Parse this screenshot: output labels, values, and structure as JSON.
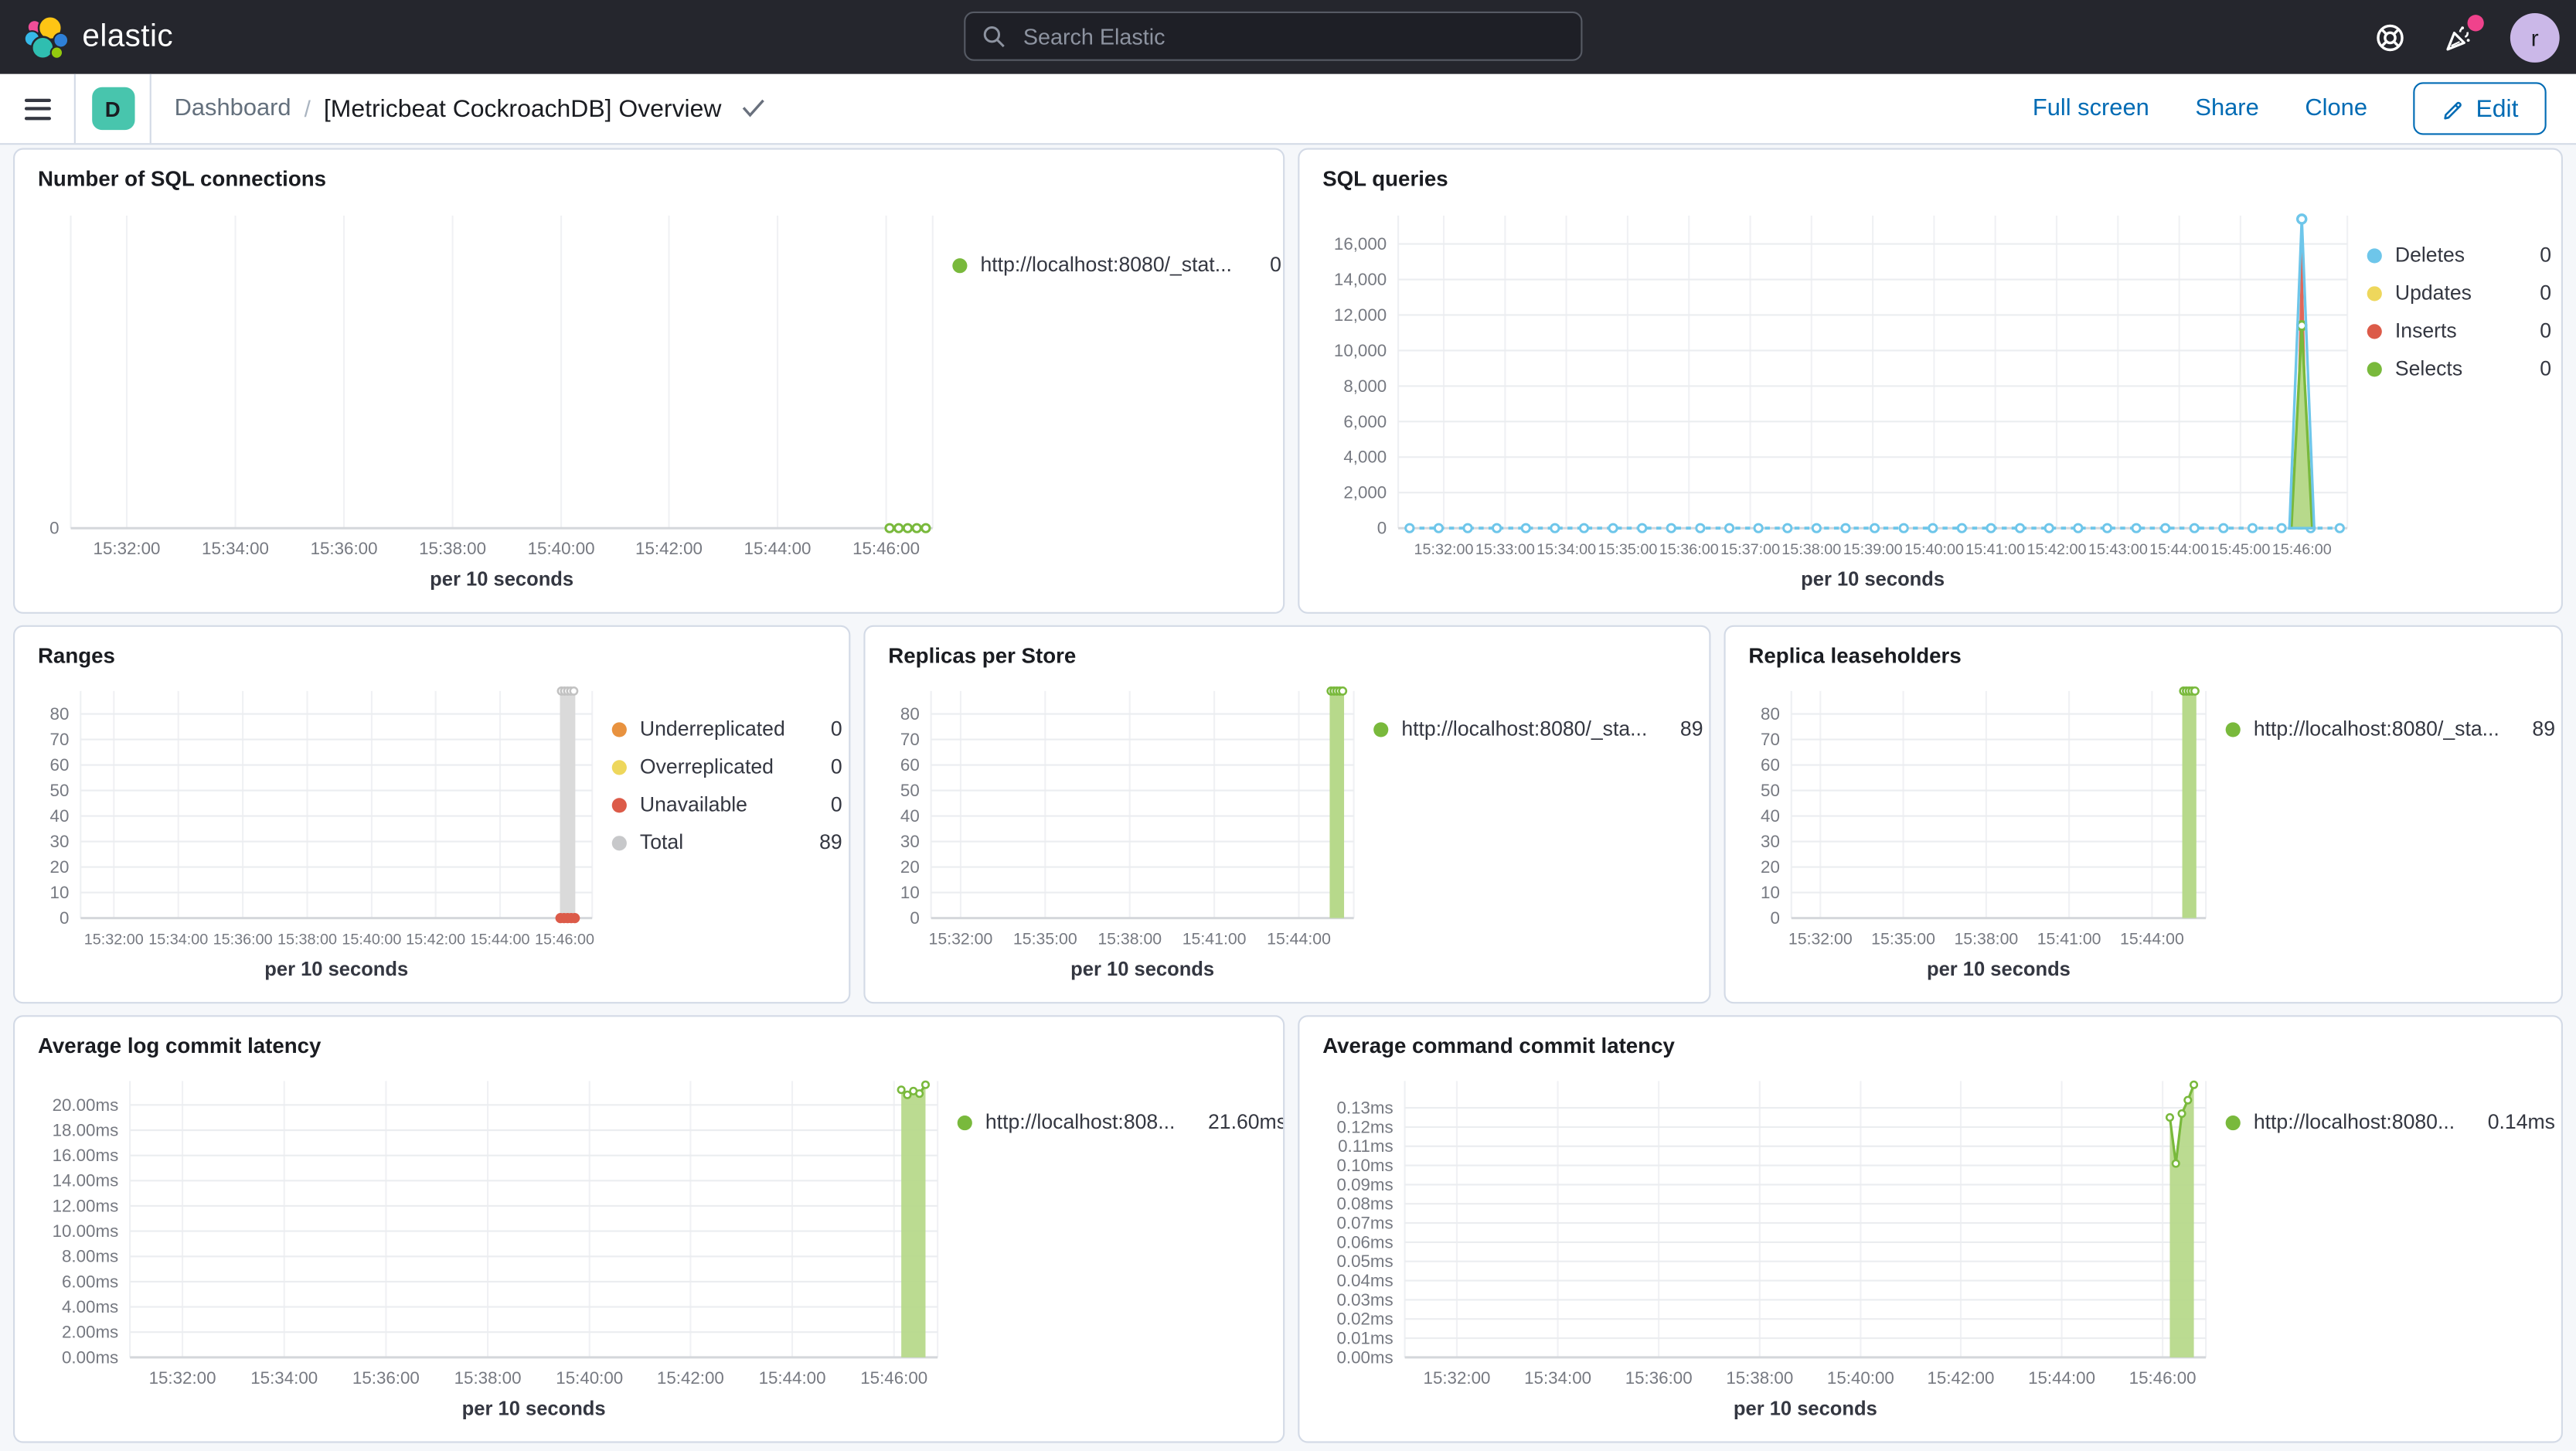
{
  "header": {
    "brand": "elastic",
    "search_placeholder": "Search Elastic",
    "avatar_initial": "r"
  },
  "toolbar": {
    "space_badge": "D",
    "breadcrumb_root": "Dashboard",
    "breadcrumb_sep": "/",
    "page_title": "[Metricbeat CockroachDB] Overview",
    "actions": [
      "Full screen",
      "Share",
      "Clone"
    ],
    "edit_label": "Edit"
  },
  "colors": {
    "accent_blue": "#006bb4",
    "teal_badge": "#48c5ad",
    "series_green": "#79b93c",
    "series_blue": "#6ec6ea",
    "series_yellow": "#eed75c",
    "series_red": "#dc5b49",
    "series_orange": "#e8923f",
    "series_gray": "#c7c8ca",
    "notification_pink": "#f0428c"
  },
  "panels": [
    {
      "id": "sql-connections",
      "title": "Number of SQL connections",
      "legend": [
        {
          "label": "http://localhost:8080/_stat...",
          "value": "0",
          "color": "#79b93c"
        }
      ]
    },
    {
      "id": "sql-queries",
      "title": "SQL queries",
      "legend": [
        {
          "label": "Deletes",
          "value": "0",
          "color": "#6ec6ea"
        },
        {
          "label": "Updates",
          "value": "0",
          "color": "#eed75c"
        },
        {
          "label": "Inserts",
          "value": "0",
          "color": "#dc5b49"
        },
        {
          "label": "Selects",
          "value": "0",
          "color": "#79b93c"
        }
      ]
    },
    {
      "id": "ranges",
      "title": "Ranges",
      "legend": [
        {
          "label": "Underreplicated",
          "value": "0",
          "color": "#e8923f"
        },
        {
          "label": "Overreplicated",
          "value": "0",
          "color": "#eed75c"
        },
        {
          "label": "Unavailable",
          "value": "0",
          "color": "#dc5b49"
        },
        {
          "label": "Total",
          "value": "89",
          "color": "#c7c8ca"
        }
      ]
    },
    {
      "id": "replicas-per-store",
      "title": "Replicas per Store",
      "legend": [
        {
          "label": "http://localhost:8080/_sta...",
          "value": "89",
          "color": "#79b93c"
        }
      ]
    },
    {
      "id": "replica-leaseholders",
      "title": "Replica leaseholders",
      "legend": [
        {
          "label": "http://localhost:8080/_sta...",
          "value": "89",
          "color": "#79b93c"
        }
      ]
    },
    {
      "id": "avg-log-commit-latency",
      "title": "Average log commit latency",
      "legend": [
        {
          "label": "http://localhost:808...",
          "value": "21.60ms",
          "color": "#79b93c"
        }
      ]
    },
    {
      "id": "avg-command-commit-latency",
      "title": "Average command commit latency",
      "legend": [
        {
          "label": "http://localhost:8080...",
          "value": "0.14ms",
          "color": "#79b93c"
        }
      ]
    }
  ],
  "chart_data": [
    {
      "type": "line",
      "title": "Number of SQL connections",
      "xtitle": "per 10 seconds",
      "ylim": [
        0,
        8
      ],
      "yticks": {
        "values": [
          0
        ],
        "labels": [
          "0"
        ]
      },
      "xticks": {
        "labels": [
          "15:32:00",
          "15:34:00",
          "15:36:00",
          "15:38:00",
          "15:40:00",
          "15:42:00",
          "15:44:00",
          "15:46:00"
        ],
        "fracs": [
          0.065,
          0.191,
          0.317,
          0.443,
          0.569,
          0.694,
          0.82,
          0.946
        ]
      },
      "series": [
        {
          "name": "http://localhost:8080/_stat...",
          "type": "dotline",
          "y": 0,
          "x1": 0.95,
          "x2": 0.992,
          "markers": 5,
          "color": "#79b93c"
        }
      ]
    },
    {
      "type": "line",
      "title": "SQL queries",
      "xtitle": "per 10 seconds",
      "ylim": [
        0,
        17600
      ],
      "yticks": {
        "values": [
          0,
          2000,
          4000,
          6000,
          8000,
          10000,
          12000,
          14000,
          16000
        ],
        "labels": [
          "0",
          "2,000",
          "4,000",
          "6,000",
          "8,000",
          "10,000",
          "12,000",
          "14,000",
          "16,000"
        ]
      },
      "xticks": {
        "labels": [
          "15:32:00",
          "15:33:00",
          "15:34:00",
          "15:35:00",
          "15:36:00",
          "15:37:00",
          "15:38:00",
          "15:39:00",
          "15:40:00",
          "15:41:00",
          "15:42:00",
          "15:43:00",
          "15:44:00",
          "15:45:00",
          "15:46:00"
        ],
        "fracs": [
          0.048,
          0.1126,
          0.1771,
          0.2417,
          0.3063,
          0.3709,
          0.4354,
          0.5,
          0.5646,
          0.6291,
          0.6937,
          0.7583,
          0.8229,
          0.8874,
          0.952
        ]
      },
      "series": [
        {
          "name": "Deletes",
          "type": "dotline",
          "y": 0,
          "x1": 0.012,
          "x2": 0.992,
          "markers": 33,
          "color": "#6ec6ea"
        },
        {
          "name": "Inserts",
          "type": "spike",
          "x": 0.952,
          "half": 0.008,
          "peak": 16900,
          "fill": "#e0685a"
        },
        {
          "name": "Selects",
          "type": "spike",
          "x": 0.952,
          "half": 0.011,
          "peak": 11400,
          "fill": "#b7d98b",
          "stroke": "#79b93c",
          "apex": "#79b93c"
        },
        {
          "name": "Deletes",
          "type": "spike",
          "x": 0.952,
          "half": 0.013,
          "peak": 17400,
          "fill": "none",
          "stroke": "#6ec6ea",
          "apex": "#6ec6ea"
        },
        {
          "name": "Updates",
          "type": "flat-zero",
          "value": 0,
          "color": "#eed75c"
        }
      ]
    },
    {
      "type": "bar",
      "title": "Ranges",
      "xtitle": "per 10 seconds",
      "ylim": [
        0,
        89
      ],
      "yticks": {
        "values": [
          0,
          10,
          20,
          30,
          40,
          50,
          60,
          70,
          80
        ],
        "labels": [
          "0",
          "10",
          "20",
          "30",
          "40",
          "50",
          "60",
          "70",
          "80"
        ]
      },
      "xticks": {
        "labels": [
          "15:32:00",
          "15:34:00",
          "15:36:00",
          "15:38:00",
          "15:40:00",
          "15:42:00",
          "15:44:00",
          "15:46:00"
        ],
        "fracs": [
          0.065,
          0.191,
          0.317,
          0.443,
          0.569,
          0.694,
          0.82,
          0.946
        ]
      },
      "series": [
        {
          "name": "Total",
          "type": "bar",
          "x": 0.952,
          "width": 0.03,
          "v": 89,
          "fill": "#dadada",
          "topMarkers": {
            "count": 5,
            "color": "#c2c2c2"
          }
        },
        {
          "name": "Unavailable",
          "type": "dotline",
          "y": 0,
          "x1": 0.938,
          "x2": 0.966,
          "markers": 5,
          "color": "#dc5b49",
          "solid": true
        }
      ]
    },
    {
      "type": "bar",
      "title": "Replicas per Store",
      "xtitle": "per 10 seconds",
      "ylim": [
        0,
        89
      ],
      "yticks": {
        "values": [
          0,
          10,
          20,
          30,
          40,
          50,
          60,
          70,
          80
        ],
        "labels": [
          "0",
          "10",
          "20",
          "30",
          "40",
          "50",
          "60",
          "70",
          "80"
        ]
      },
      "xticks": {
        "labels": [
          "15:32:00",
          "15:35:00",
          "15:38:00",
          "15:41:00",
          "15:44:00"
        ],
        "fracs": [
          0.07,
          0.27,
          0.47,
          0.67,
          0.87
        ]
      },
      "series": [
        {
          "name": "http://localhost:8080/_sta...",
          "type": "bar",
          "x": 0.96,
          "width": 0.034,
          "v": 89,
          "fill": "#b7d98b",
          "topMarkers": {
            "count": 5,
            "color": "#79b93c"
          }
        }
      ]
    },
    {
      "type": "bar",
      "title": "Replica leaseholders",
      "xtitle": "per 10 seconds",
      "ylim": [
        0,
        89
      ],
      "yticks": {
        "values": [
          0,
          10,
          20,
          30,
          40,
          50,
          60,
          70,
          80
        ],
        "labels": [
          "0",
          "10",
          "20",
          "30",
          "40",
          "50",
          "60",
          "70",
          "80"
        ]
      },
      "xticks": {
        "labels": [
          "15:32:00",
          "15:35:00",
          "15:38:00",
          "15:41:00",
          "15:44:00"
        ],
        "fracs": [
          0.07,
          0.27,
          0.47,
          0.67,
          0.87
        ]
      },
      "series": [
        {
          "name": "http://localhost:8080/_sta...",
          "type": "bar",
          "x": 0.96,
          "width": 0.034,
          "v": 89,
          "fill": "#b7d98b",
          "topMarkers": {
            "count": 5,
            "color": "#79b93c"
          }
        }
      ]
    },
    {
      "type": "area",
      "title": "Average log commit latency",
      "xtitle": "per 10 seconds",
      "ylim": [
        0,
        21.9
      ],
      "yticks": {
        "values": [
          0,
          2,
          4,
          6,
          8,
          10,
          12,
          14,
          16,
          18,
          20
        ],
        "labels": [
          "0.00ms",
          "2.00ms",
          "4.00ms",
          "6.00ms",
          "8.00ms",
          "10.00ms",
          "12.00ms",
          "14.00ms",
          "16.00ms",
          "18.00ms",
          "20.00ms"
        ]
      },
      "xticks": {
        "labels": [
          "15:32:00",
          "15:34:00",
          "15:36:00",
          "15:38:00",
          "15:40:00",
          "15:42:00",
          "15:44:00",
          "15:46:00"
        ],
        "fracs": [
          0.065,
          0.191,
          0.317,
          0.443,
          0.569,
          0.694,
          0.82,
          0.946
        ]
      },
      "series": [
        {
          "name": "http://localhost:808...",
          "type": "area",
          "stroke": "#79b93c",
          "fill": "#b7d98b",
          "points": [
            [
              0.955,
              21.2
            ],
            [
              0.9625,
              20.8
            ],
            [
              0.97,
              21.1
            ],
            [
              0.9775,
              20.9
            ],
            [
              0.985,
              21.6
            ]
          ]
        }
      ]
    },
    {
      "type": "area",
      "title": "Average command commit latency",
      "xtitle": "per 10 seconds",
      "ylim": [
        0,
        0.144
      ],
      "yticks": {
        "values": [
          0,
          0.01,
          0.02,
          0.03,
          0.04,
          0.05,
          0.06,
          0.07,
          0.08,
          0.09,
          0.1,
          0.11,
          0.12,
          0.13
        ],
        "labels": [
          "0.00ms",
          "0.01ms",
          "0.02ms",
          "0.03ms",
          "0.04ms",
          "0.05ms",
          "0.06ms",
          "0.07ms",
          "0.08ms",
          "0.09ms",
          "0.10ms",
          "0.11ms",
          "0.12ms",
          "0.13ms"
        ]
      },
      "xticks": {
        "labels": [
          "15:32:00",
          "15:34:00",
          "15:36:00",
          "15:38:00",
          "15:40:00",
          "15:42:00",
          "15:44:00",
          "15:46:00"
        ],
        "fracs": [
          0.065,
          0.191,
          0.317,
          0.443,
          0.569,
          0.694,
          0.82,
          0.946
        ]
      },
      "series": [
        {
          "name": "http://localhost:8080...",
          "type": "area",
          "stroke": "#79b93c",
          "fill": "#b7d98b",
          "points": [
            [
              0.955,
              0.125
            ],
            [
              0.9625,
              0.101
            ],
            [
              0.97,
              0.127
            ],
            [
              0.9775,
              0.134
            ],
            [
              0.985,
              0.142
            ]
          ]
        }
      ]
    }
  ]
}
